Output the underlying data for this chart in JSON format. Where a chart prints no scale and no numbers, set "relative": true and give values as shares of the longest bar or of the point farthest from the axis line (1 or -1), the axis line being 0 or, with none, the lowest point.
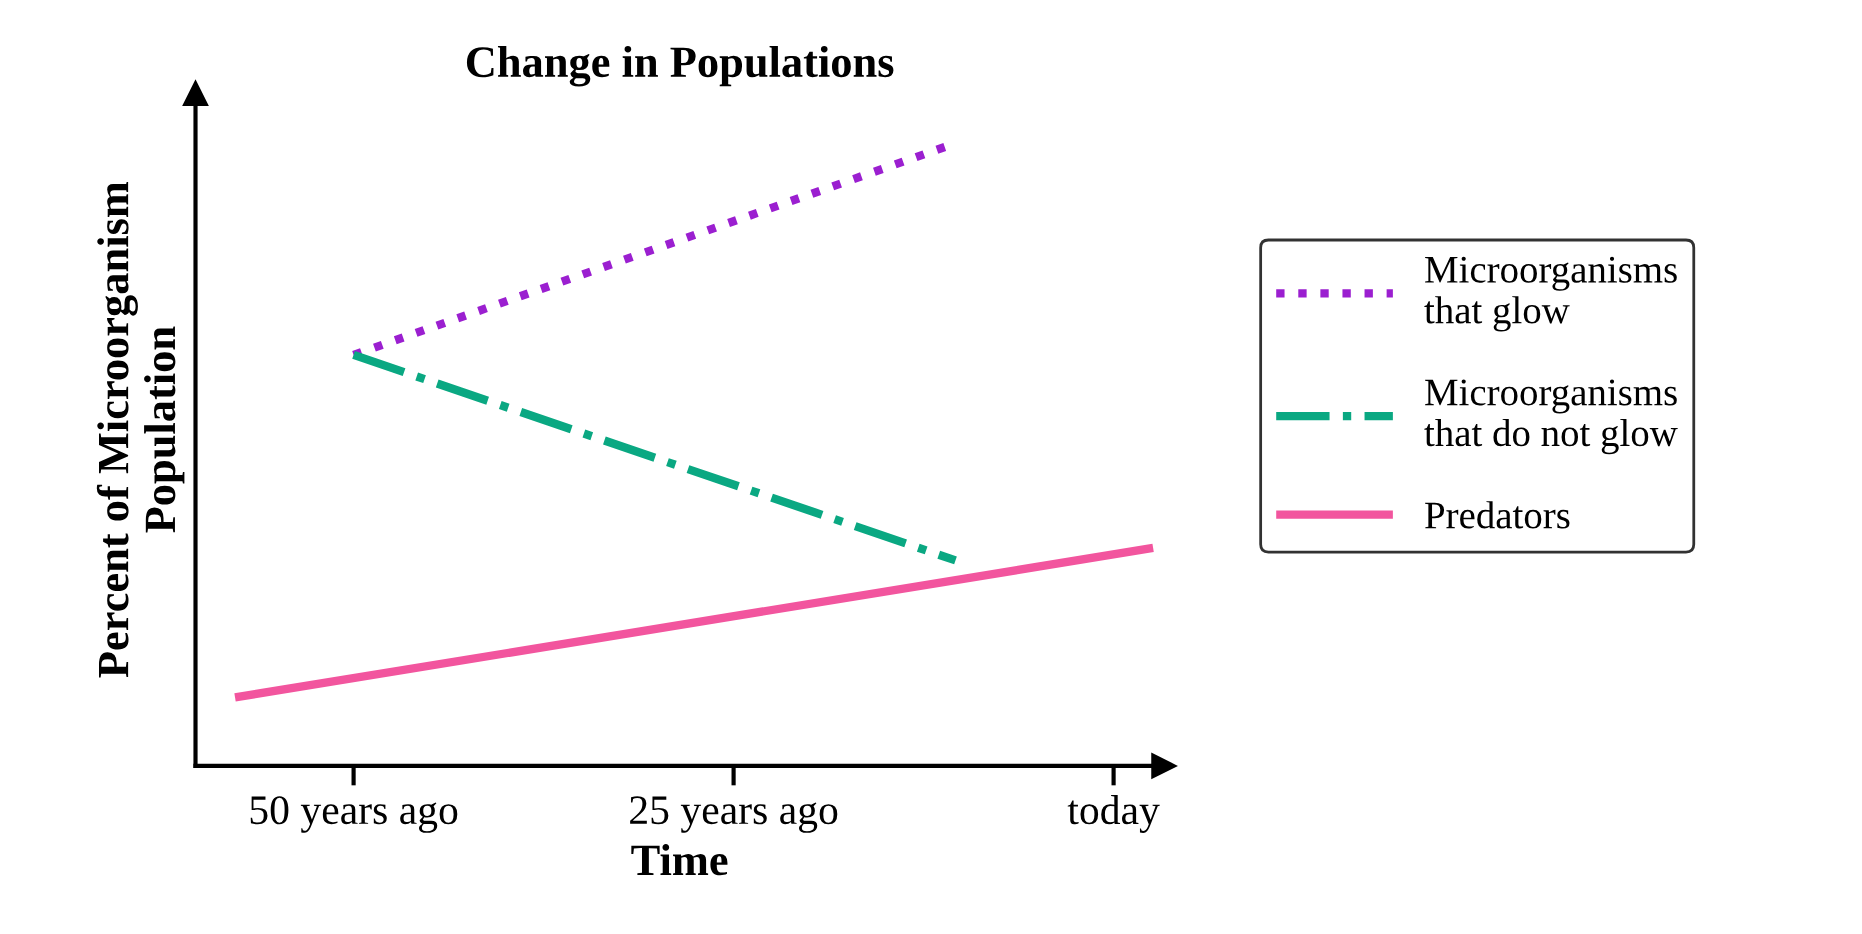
{
  "chart_data": {
    "type": "line",
    "title": "Change in Populations",
    "xlabel": "Time",
    "ylabel": "Percent of Microorganism\nPopulation",
    "relative": true,
    "xlim": [
      -60.4,
      3.3
    ],
    "xticks": [
      {
        "value": -50,
        "label": "50 years ago"
      },
      {
        "value": -25,
        "label": "25 years ago"
      },
      {
        "value": 0,
        "label": "today"
      }
    ],
    "tick_labels": "x",
    "legend": "right",
    "grid": false,
    "series": [
      {
        "name": "Microorganisms\nthat glow",
        "color": "#9b1fd0",
        "line_style": "dotted",
        "x": [
          -50,
          -10.4
        ],
        "values": [
          0.66,
          1
        ]
      },
      {
        "name": "Microorganisms\nthat do not glow",
        "color": "#0aa882",
        "line_style": "dashdot",
        "x": [
          -50,
          -10.4
        ],
        "values": [
          0.66,
          0.33
        ]
      },
      {
        "name": "Predators",
        "color": "#f2559e",
        "line_style": "solid",
        "x": [
          -57.8,
          2.6
        ],
        "values": [
          0.11,
          0.35
        ]
      }
    ]
  }
}
